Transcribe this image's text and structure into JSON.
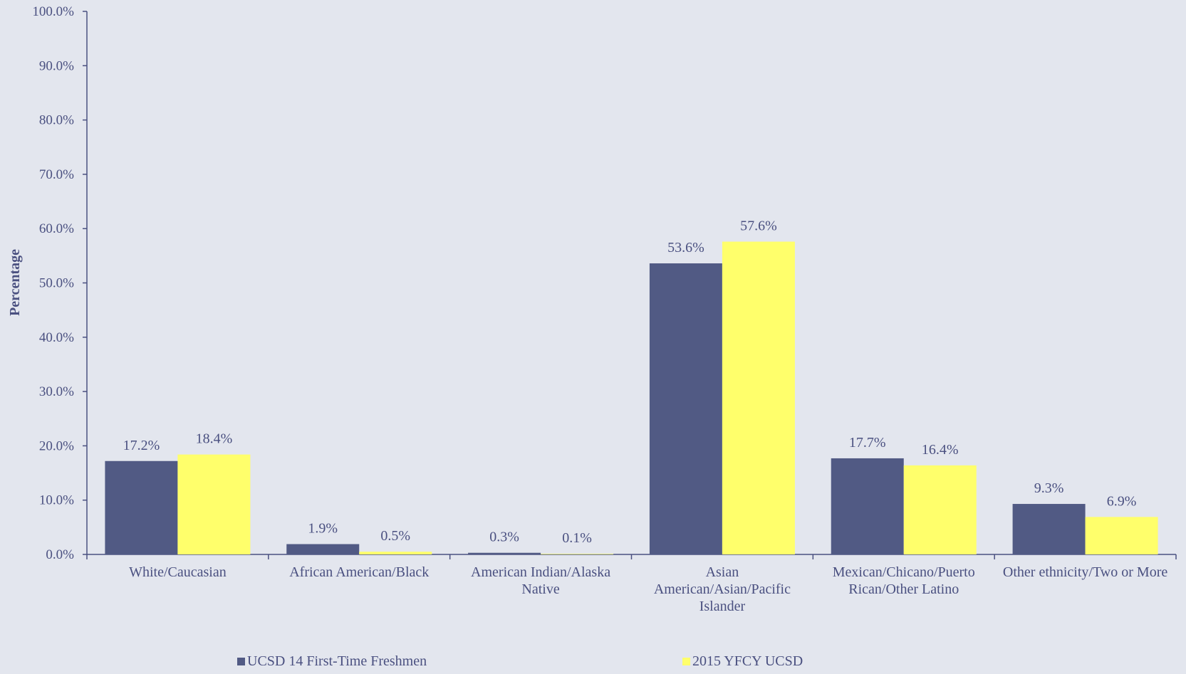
{
  "chart_data": {
    "type": "bar",
    "ylabel": "Percentage",
    "ylim": [
      0,
      100
    ],
    "yticks": [
      "0.0%",
      "10.0%",
      "20.0%",
      "30.0%",
      "40.0%",
      "50.0%",
      "60.0%",
      "70.0%",
      "80.0%",
      "90.0%",
      "100.0%"
    ],
    "categories": [
      [
        "White/Caucasian"
      ],
      [
        "African American/Black"
      ],
      [
        "American Indian/Alaska",
        "Native"
      ],
      [
        "Asian",
        "American/Asian/Pacific",
        "Islander"
      ],
      [
        "Mexican/Chicano/Puerto",
        "Rican/Other Latino"
      ],
      [
        "Other ethnicity/Two or More"
      ]
    ],
    "series": [
      {
        "name": "UCSD 14 First-Time Freshmen",
        "color": "#515a84",
        "values": [
          17.2,
          1.9,
          0.3,
          53.6,
          17.7,
          9.3
        ],
        "labels": [
          "17.2%",
          "1.9%",
          "0.3%",
          "53.6%",
          "17.7%",
          "9.3%"
        ]
      },
      {
        "name": "2015 YFCY UCSD",
        "color": "#ffff6b",
        "values": [
          18.4,
          0.5,
          0.1,
          57.6,
          16.4,
          6.9
        ],
        "labels": [
          "18.4%",
          "0.5%",
          "0.1%",
          "57.6%",
          "16.4%",
          "6.9%"
        ]
      }
    ],
    "grid": false,
    "legend": "bottom"
  }
}
